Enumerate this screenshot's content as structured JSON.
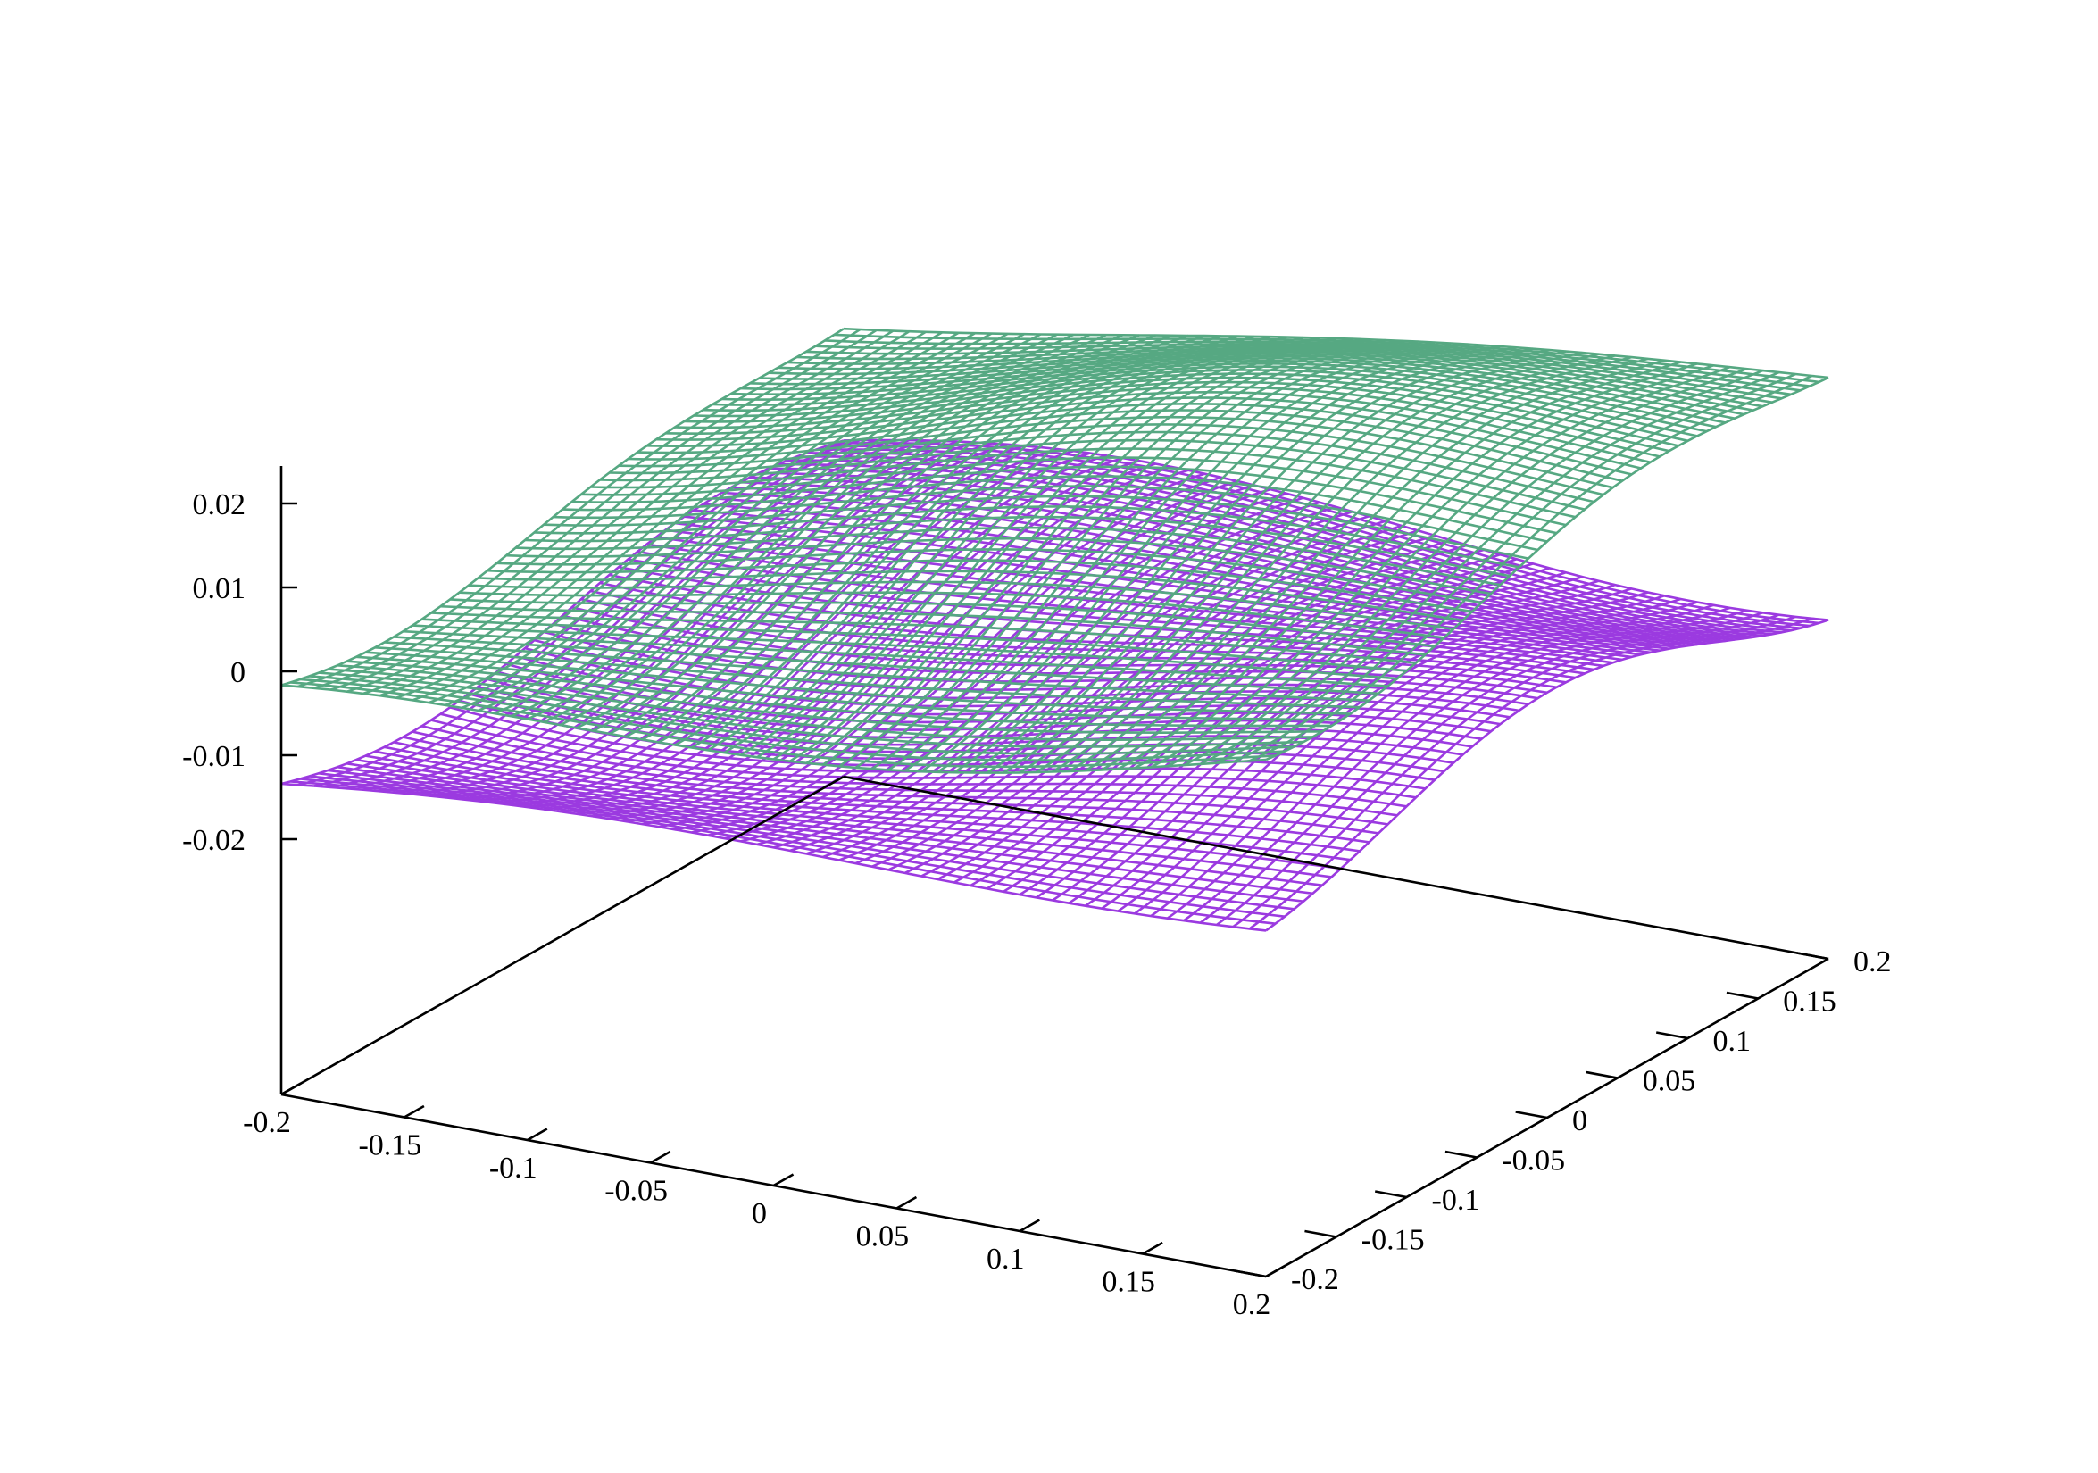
{
  "chart_data": {
    "type": "surface",
    "title": "",
    "xlabel": "",
    "ylabel": "",
    "zlabel": "",
    "xlim": [
      -0.2,
      0.2
    ],
    "ylim": [
      -0.2,
      0.2
    ],
    "zlim": [
      -0.02,
      0.025
    ],
    "x_ticks": [
      "-0.2",
      "-0.15",
      "-0.1",
      "-0.05",
      "0",
      "0.05",
      "0.1",
      "0.15",
      "0.2"
    ],
    "y_ticks": [
      "-0.2",
      "-0.15",
      "-0.1",
      "-0.05",
      "0",
      "0.05",
      "0.1",
      "0.15",
      "0.2"
    ],
    "z_ticks": [
      "-0.02",
      "-0.01",
      "0",
      "0.01",
      "0.02"
    ],
    "grid": false,
    "legend": "none",
    "mesh_resolution": 60,
    "series": [
      {
        "mesh_color": "#56a882",
        "form": "z = 0.015*(x+0.2)/0.4 + 0.008*(y+0.2)/0.4 - 0.002 + 0.0045*sin(12x+1.0)*cos(9y-0.5) + 0.0035*sin(15y+0.7)",
        "sample_z": {
          "x=-0.2,y=-0.2": -0.001,
          "x=0.2,y=-0.2": 0.013,
          "x=-0.2,y=0.2": 0.006,
          "x=0.2,y=0.2": 0.02
        }
      },
      {
        "mesh_color": "#9b3ae0",
        "form": "z = -0.012 + 0.007*(x+0.2)/0.4 + 0.0045*sin(11x-0.4)*cos(13y+0.6) + 0.003*cos(14y-1.0)",
        "sample_z": {
          "x=-0.2,y=-0.2": -0.014,
          "x=0.2,y=-0.2": -0.006,
          "x=-0.2,y=0.2": -0.01,
          "x=0.2,y=0.2": -0.001
        }
      }
    ]
  }
}
